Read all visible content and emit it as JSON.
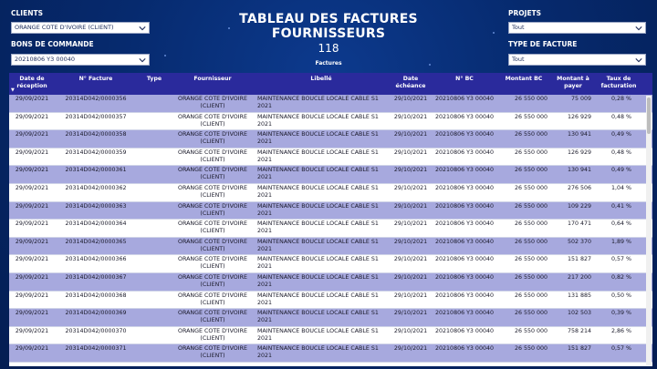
{
  "header": {
    "title": "TABLEAU DES FACTURES FOURNISSEURS",
    "kpi_value": "118",
    "kpi_label": "Factures"
  },
  "filters": {
    "clients_label": "CLIENTS",
    "clients_value": "ORANGE COTE D'IVOIRE (CLIENT)",
    "bons_label": "BONS DE COMMANDE",
    "bons_value": "20210806 Y3 00040",
    "projets_label": "PROJETS",
    "projets_value": "Tout",
    "type_label": "TYPE DE FACTURE",
    "type_value": "Tout"
  },
  "table": {
    "columns": [
      "Date de réception",
      "N° Facture",
      "Type",
      "Fournisseur",
      "Libellé",
      "Date échéance",
      "N° BC",
      "Montant BC",
      "Montant à payer",
      "Taux de facturation"
    ],
    "rows": [
      [
        "29/09/2021",
        "20314D042/0000356",
        "",
        "ORANGE COTE D'IVOIRE (CLIENT)",
        "MAINTENANCE BOUCLE LOCALE CABLE S1 2021",
        "29/10/2021",
        "20210806 Y3 00040",
        "26 550 000",
        "75 009",
        "0,28 %"
      ],
      [
        "29/09/2021",
        "20314D042/0000357",
        "",
        "ORANGE COTE D'IVOIRE (CLIENT)",
        "MAINTENANCE BOUCLE LOCALE CABLE S1 2021",
        "29/10/2021",
        "20210806 Y3 00040",
        "26 550 000",
        "126 929",
        "0,48 %"
      ],
      [
        "29/09/2021",
        "20314D042/0000358",
        "",
        "ORANGE COTE D'IVOIRE (CLIENT)",
        "MAINTENANCE BOUCLE LOCALE CABLE S1 2021",
        "29/10/2021",
        "20210806 Y3 00040",
        "26 550 000",
        "130 941",
        "0,49 %"
      ],
      [
        "29/09/2021",
        "20314D042/0000359",
        "",
        "ORANGE COTE D'IVOIRE (CLIENT)",
        "MAINTENANCE BOUCLE LOCALE CABLE S1 2021",
        "29/10/2021",
        "20210806 Y3 00040",
        "26 550 000",
        "126 929",
        "0,48 %"
      ],
      [
        "29/09/2021",
        "20314D042/0000361",
        "",
        "ORANGE COTE D'IVOIRE (CLIENT)",
        "MAINTENANCE BOUCLE LOCALE CABLE S1 2021",
        "29/10/2021",
        "20210806 Y3 00040",
        "26 550 000",
        "130 941",
        "0,49 %"
      ],
      [
        "29/09/2021",
        "20314D042/0000362",
        "",
        "ORANGE COTE D'IVOIRE (CLIENT)",
        "MAINTENANCE BOUCLE LOCALE CABLE S1 2021",
        "29/10/2021",
        "20210806 Y3 00040",
        "26 550 000",
        "276 506",
        "1,04 %"
      ],
      [
        "29/09/2021",
        "20314D042/0000363",
        "",
        "ORANGE COTE D'IVOIRE (CLIENT)",
        "MAINTENANCE BOUCLE LOCALE CABLE S1 2021",
        "29/10/2021",
        "20210806 Y3 00040",
        "26 550 000",
        "109 229",
        "0,41 %"
      ],
      [
        "29/09/2021",
        "20314D042/0000364",
        "",
        "ORANGE COTE D'IVOIRE (CLIENT)",
        "MAINTENANCE BOUCLE LOCALE CABLE S1 2021",
        "29/10/2021",
        "20210806 Y3 00040",
        "26 550 000",
        "170 471",
        "0,64 %"
      ],
      [
        "29/09/2021",
        "20314D042/0000365",
        "",
        "ORANGE COTE D'IVOIRE (CLIENT)",
        "MAINTENANCE BOUCLE LOCALE CABLE S1 2021",
        "29/10/2021",
        "20210806 Y3 00040",
        "26 550 000",
        "502 370",
        "1,89 %"
      ],
      [
        "29/09/2021",
        "20314D042/0000366",
        "",
        "ORANGE COTE D'IVOIRE (CLIENT)",
        "MAINTENANCE BOUCLE LOCALE CABLE S1 2021",
        "29/10/2021",
        "20210806 Y3 00040",
        "26 550 000",
        "151 827",
        "0,57 %"
      ],
      [
        "29/09/2021",
        "20314D042/0000367",
        "",
        "ORANGE COTE D'IVOIRE (CLIENT)",
        "MAINTENANCE BOUCLE LOCALE CABLE S1 2021",
        "29/10/2021",
        "20210806 Y3 00040",
        "26 550 000",
        "217 200",
        "0,82 %"
      ],
      [
        "29/09/2021",
        "20314D042/0000368",
        "",
        "ORANGE COTE D'IVOIRE (CLIENT)",
        "MAINTENANCE BOUCLE LOCALE CABLE S1 2021",
        "29/10/2021",
        "20210806 Y3 00040",
        "26 550 000",
        "131 885",
        "0,50 %"
      ],
      [
        "29/09/2021",
        "20314D042/0000369",
        "",
        "ORANGE COTE D'IVOIRE (CLIENT)",
        "MAINTENANCE BOUCLE LOCALE CABLE S1 2021",
        "29/10/2021",
        "20210806 Y3 00040",
        "26 550 000",
        "102 503",
        "0,39 %"
      ],
      [
        "29/09/2021",
        "20314D042/0000370",
        "",
        "ORANGE COTE D'IVOIRE (CLIENT)",
        "MAINTENANCE BOUCLE LOCALE CABLE S1 2021",
        "29/10/2021",
        "20210806 Y3 00040",
        "26 550 000",
        "758 214",
        "2,86 %"
      ],
      [
        "29/09/2021",
        "20314D042/0000371",
        "",
        "ORANGE COTE D'IVOIRE (CLIENT)",
        "MAINTENANCE BOUCLE LOCALE CABLE S1 2021",
        "29/10/2021",
        "20210806 Y3 00040",
        "26 550 000",
        "151 827",
        "0,57 %"
      ]
    ]
  },
  "colors": {
    "header_bg": "#2a2a9c",
    "row_alt": "#a7a9de",
    "background": "#062a6e"
  },
  "icons": {
    "dropdown": "chevron-down-icon",
    "sort": "sort-down-icon"
  }
}
